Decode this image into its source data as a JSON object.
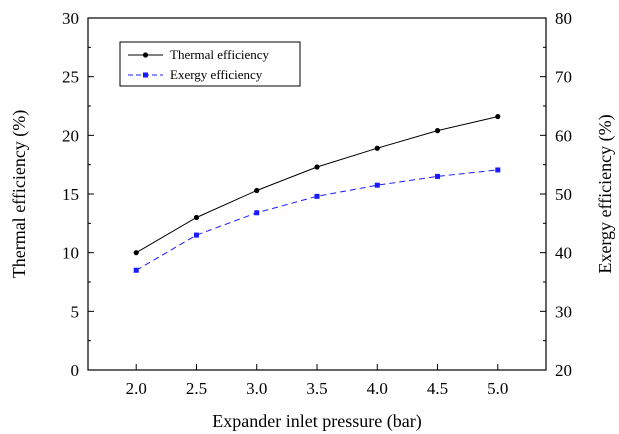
{
  "chart_data": {
    "type": "line",
    "x": [
      2.0,
      2.5,
      3.0,
      3.5,
      4.0,
      4.5,
      5.0
    ],
    "x_tick_labels": [
      "2.0",
      "2.5",
      "3.0",
      "3.5",
      "4.0",
      "4.5",
      "5.0"
    ],
    "xlabel": "Expander inlet pressure (bar)",
    "xlim": [
      1.6,
      5.4
    ],
    "ylabel_left": "Thermal efficiency (%)",
    "ylim_left": [
      0,
      30
    ],
    "yticks_left": [
      "0",
      "5",
      "10",
      "15",
      "20",
      "25",
      "30"
    ],
    "ylabel_right": "Exergy efficiency (%)",
    "ylim_right": [
      20,
      80
    ],
    "yticks_right": [
      "20",
      "30",
      "40",
      "50",
      "60",
      "70",
      "80"
    ],
    "grid": false,
    "legend_position": "top-left",
    "series": [
      {
        "name": "Thermal efficiency",
        "axis": "left",
        "color": "#000000",
        "marker": "circle",
        "line_style": "solid",
        "values": [
          10.0,
          13.0,
          15.3,
          17.3,
          18.9,
          20.4,
          21.6
        ]
      },
      {
        "name": "Exergy efficiency",
        "axis": "right",
        "color": "#1a1aff",
        "marker": "square",
        "line_style": "dashed",
        "values": [
          37.0,
          43.0,
          46.8,
          49.6,
          51.5,
          53.0,
          54.1
        ]
      }
    ]
  }
}
